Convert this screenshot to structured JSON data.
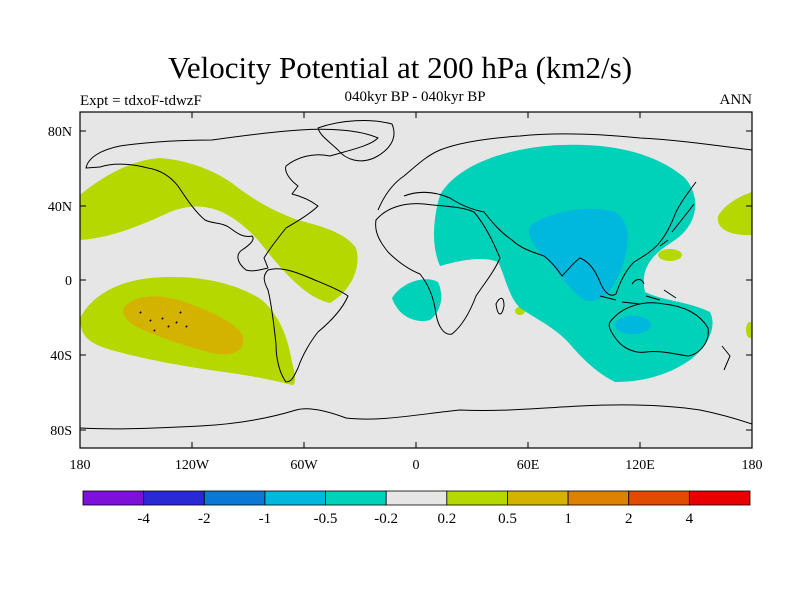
{
  "title": "Velocity Potential at 200 hPa (km2/s)",
  "subtitle": "040kyr BP - 040kyr BP",
  "experiment": "Expt = tdxoF-tdwzF",
  "season": "ANN",
  "lat_labels": [
    "80N",
    "40N",
    "0",
    "40S",
    "80S"
  ],
  "lon_labels": [
    "180",
    "120W",
    "60W",
    "0",
    "60E",
    "120E",
    "180"
  ],
  "colorbar": {
    "labels": [
      "-4",
      "-2",
      "-1",
      "-0.5",
      "-0.2",
      "0.2",
      "0.5",
      "1",
      "2",
      "4"
    ],
    "colors": [
      "#7d10d9",
      "#2a2ad4",
      "#0a78d4",
      "#00b7dd",
      "#00d1b9",
      "#e6e6e6",
      "#b4d800",
      "#d4b300",
      "#dd8100",
      "#e04b00",
      "#e80000"
    ]
  },
  "colors": {
    "ocean_background": "#e6e6e6",
    "positive_weak": "#b4d800",
    "positive_moderate": "#d4b300",
    "negative_weak": "#00d1b9",
    "negative_moderate": "#00b7dd"
  }
}
